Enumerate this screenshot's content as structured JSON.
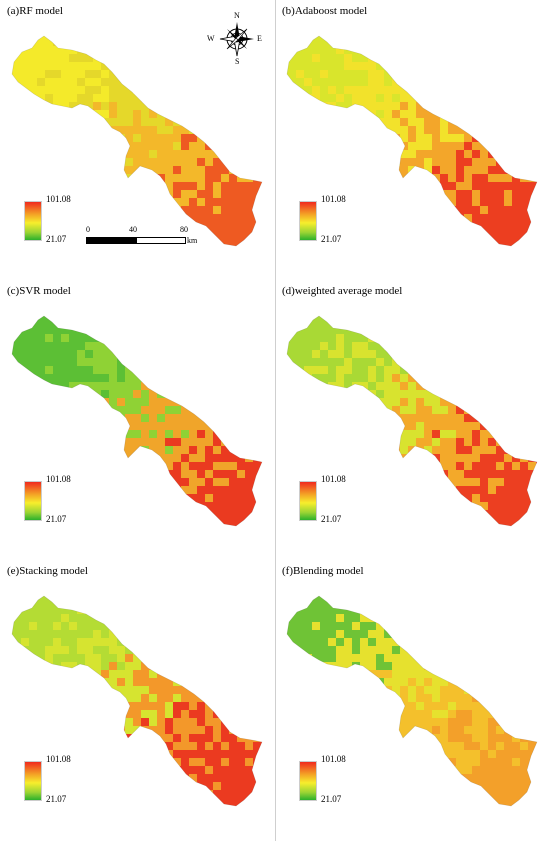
{
  "panels": [
    {
      "title": "(a)RF model",
      "palette": [
        "#f4ea2a",
        "#e5d82a",
        "#f3b82a",
        "#ee5a22"
      ]
    },
    {
      "title": "(b)Adaboost model",
      "palette": [
        "#d9e52c",
        "#f2e22b",
        "#f3a62a",
        "#ec3e20"
      ]
    },
    {
      "title": "(c)SVR model",
      "palette": [
        "#5cbf35",
        "#8fd235",
        "#f0a52a",
        "#ea3a20"
      ]
    },
    {
      "title": "(d)weighted average model",
      "palette": [
        "#a9d935",
        "#d8e32f",
        "#f3a92a",
        "#ec3f21"
      ]
    },
    {
      "title": "(e)Stacking model",
      "palette": [
        "#b4dc34",
        "#d6e430",
        "#f3982a",
        "#eb3a20"
      ]
    },
    {
      "title": "(f)Blending model",
      "palette": [
        "#6fc336",
        "#e6e12e",
        "#f4c02c",
        "#f3a02a"
      ]
    }
  ],
  "legend": {
    "max": "101.08",
    "min": "21.07"
  },
  "compass": {
    "n": "N",
    "s": "S",
    "e": "E",
    "w": "W"
  },
  "scalebar": {
    "ticks": [
      "0",
      "40",
      "80"
    ],
    "unit": "km"
  }
}
